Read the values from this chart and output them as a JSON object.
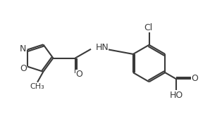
{
  "background_color": "#ffffff",
  "bond_color": "#3a3a3a",
  "bond_width": 1.5,
  "fig_width": 2.98,
  "fig_height": 1.89,
  "dpi": 100,
  "label_fontsize": 9.0,
  "xlim": [
    0,
    10
  ],
  "ylim": [
    0,
    6.3
  ]
}
